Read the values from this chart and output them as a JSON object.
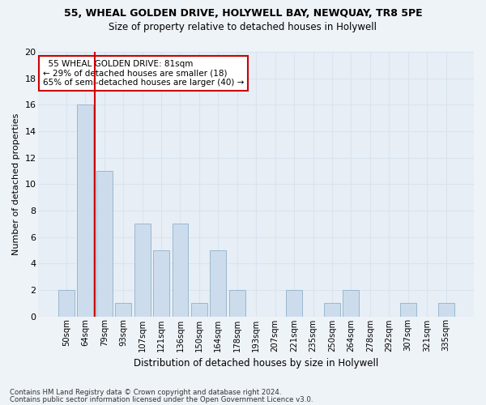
{
  "title_line1": "55, WHEAL GOLDEN DRIVE, HOLYWELL BAY, NEWQUAY, TR8 5PE",
  "title_line2": "Size of property relative to detached houses in Holywell",
  "xlabel": "Distribution of detached houses by size in Holywell",
  "ylabel": "Number of detached properties",
  "categories": [
    "50sqm",
    "64sqm",
    "79sqm",
    "93sqm",
    "107sqm",
    "121sqm",
    "136sqm",
    "150sqm",
    "164sqm",
    "178sqm",
    "193sqm",
    "207sqm",
    "221sqm",
    "235sqm",
    "250sqm",
    "264sqm",
    "278sqm",
    "292sqm",
    "307sqm",
    "321sqm",
    "335sqm"
  ],
  "values": [
    2,
    16,
    11,
    1,
    7,
    5,
    7,
    1,
    5,
    2,
    0,
    0,
    2,
    0,
    1,
    2,
    0,
    0,
    1,
    0,
    1
  ],
  "bar_color": "#ccdcec",
  "bar_edge_color": "#9ab8d0",
  "grid_color": "#d8e4f0",
  "vline_x": 2,
  "vline_color": "#cc0000",
  "annotation_text": "  55 WHEAL GOLDEN DRIVE: 81sqm  \n← 29% of detached houses are smaller (18)\n65% of semi-detached houses are larger (40) →",
  "annotation_box_color": "#ffffff",
  "annotation_box_edge": "#cc0000",
  "ylim": [
    0,
    20
  ],
  "yticks": [
    0,
    2,
    4,
    6,
    8,
    10,
    12,
    14,
    16,
    18,
    20
  ],
  "footnote1": "Contains HM Land Registry data © Crown copyright and database right 2024.",
  "footnote2": "Contains public sector information licensed under the Open Government Licence v3.0.",
  "bg_color": "#eef3f8",
  "plot_bg_color": "#e8eef5"
}
